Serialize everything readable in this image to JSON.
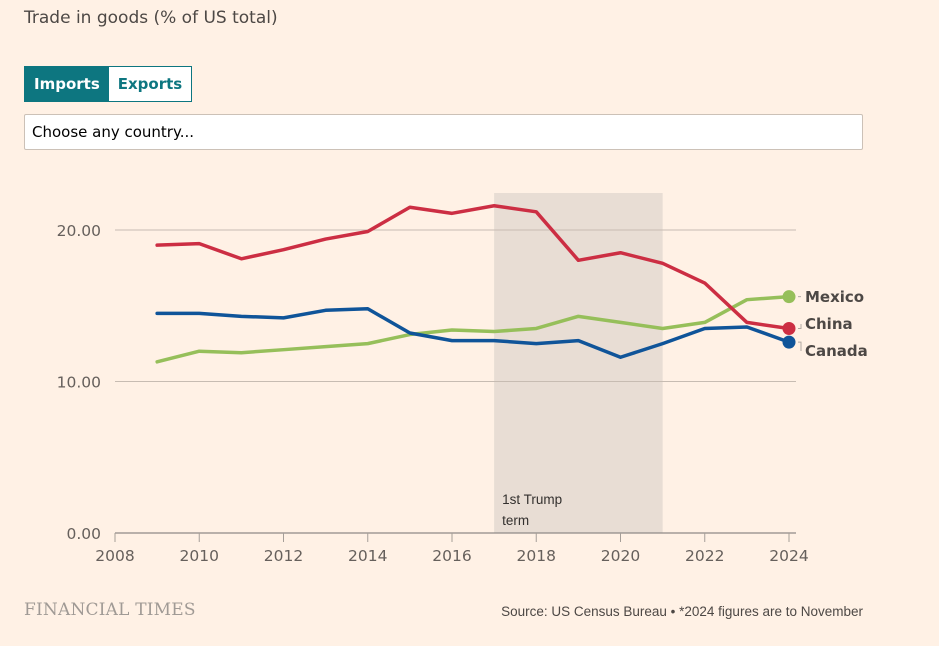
{
  "title": "Trade in goods (% of US total)",
  "toggle": {
    "options": [
      "Imports",
      "Exports"
    ],
    "selected": "Imports"
  },
  "country_select": {
    "placeholder": "Choose any country..."
  },
  "colors": {
    "china": "#cc2e43",
    "mexico": "#96bf5a",
    "canada": "#0f5499",
    "shade": "#e8ddd4",
    "toggle_accent": "#0d7680"
  },
  "chart_data": {
    "type": "line",
    "title": "Trade in goods (% of US total)",
    "xlabel": "",
    "ylabel": "",
    "xlim": [
      2008,
      2024
    ],
    "ylim": [
      0,
      25
    ],
    "x_ticks": [
      "2008",
      "2010",
      "2012",
      "2014",
      "2016",
      "2018",
      "2020",
      "2022",
      "2024"
    ],
    "y_ticks": [
      "0.00",
      "10.00",
      "20.00"
    ],
    "grid": true,
    "legend": "inline-right",
    "x": [
      2009,
      2010,
      2011,
      2012,
      2013,
      2014,
      2015,
      2016,
      2017,
      2018,
      2019,
      2020,
      2021,
      2022,
      2023,
      2024
    ],
    "series": [
      {
        "name": "China",
        "key": "china",
        "values": [
          19.0,
          19.1,
          18.1,
          18.7,
          19.4,
          19.9,
          21.5,
          21.1,
          21.6,
          21.2,
          18.0,
          18.5,
          17.8,
          16.5,
          13.9,
          13.5
        ]
      },
      {
        "name": "Mexico",
        "key": "mexico",
        "values": [
          11.3,
          12.0,
          11.9,
          12.1,
          12.3,
          12.5,
          13.1,
          13.4,
          13.3,
          13.5,
          14.3,
          13.9,
          13.5,
          13.9,
          15.4,
          15.6
        ]
      },
      {
        "name": "Canada",
        "key": "canada",
        "values": [
          14.5,
          14.5,
          14.3,
          14.2,
          14.7,
          14.8,
          13.2,
          12.7,
          12.7,
          12.5,
          12.7,
          11.6,
          12.5,
          13.5,
          13.6,
          12.6
        ]
      }
    ],
    "annotations": [
      {
        "type": "shaded-range",
        "x_start": 2017,
        "x_end": 2021,
        "label_lines": [
          "1st Trump",
          "term"
        ]
      }
    ]
  },
  "footer": {
    "logo": "FINANCIAL TIMES",
    "source": "Source: US Census Bureau • *2024 figures are to November"
  }
}
